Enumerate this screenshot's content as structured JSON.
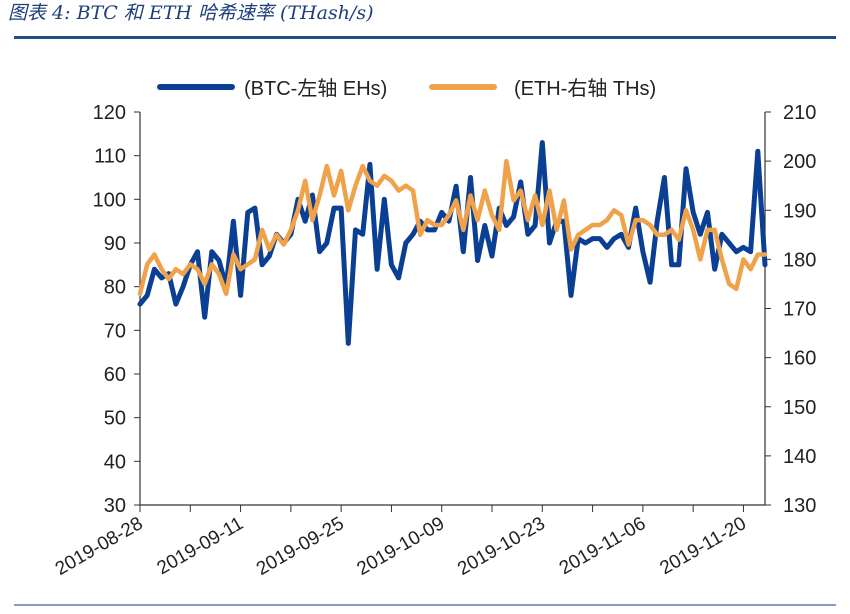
{
  "figure_title": "图表 4: BTC 和 ETH 哈希速率 (THash/s)",
  "chart_data": {
    "type": "line",
    "legend_position": "top",
    "grid": false,
    "x_tick_labels": [
      "2019-08-28",
      "2019-09-11",
      "2019-09-25",
      "2019-10-09",
      "2019-10-23",
      "2019-11-06",
      "2019-11-20"
    ],
    "y_left": {
      "ticks": [
        30,
        40,
        50,
        60,
        70,
        80,
        90,
        100,
        110,
        120
      ],
      "range": [
        30,
        120
      ]
    },
    "y_right": {
      "ticks": [
        130,
        140,
        150,
        160,
        170,
        180,
        190,
        200,
        210
      ],
      "range": [
        130,
        210
      ]
    },
    "series": [
      {
        "name": "(BTC-左轴 EHs)",
        "axis": "left",
        "color": "#0b3f94",
        "values": [
          76,
          78,
          84,
          82,
          83,
          76,
          80,
          85,
          88,
          73,
          88,
          86,
          80,
          95,
          78,
          97,
          98,
          85,
          87,
          92,
          90,
          92,
          100,
          95,
          101,
          88,
          90,
          98,
          98,
          67,
          93,
          92,
          108,
          84,
          100,
          85,
          82,
          90,
          92,
          95,
          93,
          93,
          97,
          95,
          103,
          88,
          105,
          86,
          94,
          87,
          98,
          94,
          96,
          104,
          92,
          94,
          113,
          90,
          95,
          95,
          78,
          91,
          90,
          91,
          91,
          89,
          91,
          92,
          89,
          98,
          88,
          81,
          95,
          105,
          85,
          85,
          107,
          97,
          92,
          97,
          84,
          92,
          90,
          88,
          89,
          88,
          111,
          85
        ]
      },
      {
        "name": "(ETH-右轴 THs)",
        "axis": "right",
        "color": "#f0a24a",
        "values": [
          173,
          179,
          181,
          178,
          176,
          178,
          177,
          179,
          178,
          175,
          179,
          177,
          173,
          181,
          178,
          179,
          180,
          186,
          182,
          185,
          183,
          186,
          190,
          196,
          188,
          193,
          199,
          193,
          198,
          190,
          195,
          199,
          196,
          195,
          197,
          196,
          194,
          195,
          194,
          185,
          188,
          187,
          187,
          189,
          192,
          186,
          193,
          188,
          194,
          189,
          186,
          200,
          192,
          194,
          188,
          193,
          187,
          194,
          186,
          192,
          182,
          185,
          186,
          187,
          187,
          188,
          190,
          189,
          183,
          188,
          188,
          187,
          185,
          185,
          186,
          184,
          190,
          186,
          180,
          186,
          186,
          180,
          175,
          174,
          180,
          178,
          181,
          181
        ]
      }
    ]
  }
}
